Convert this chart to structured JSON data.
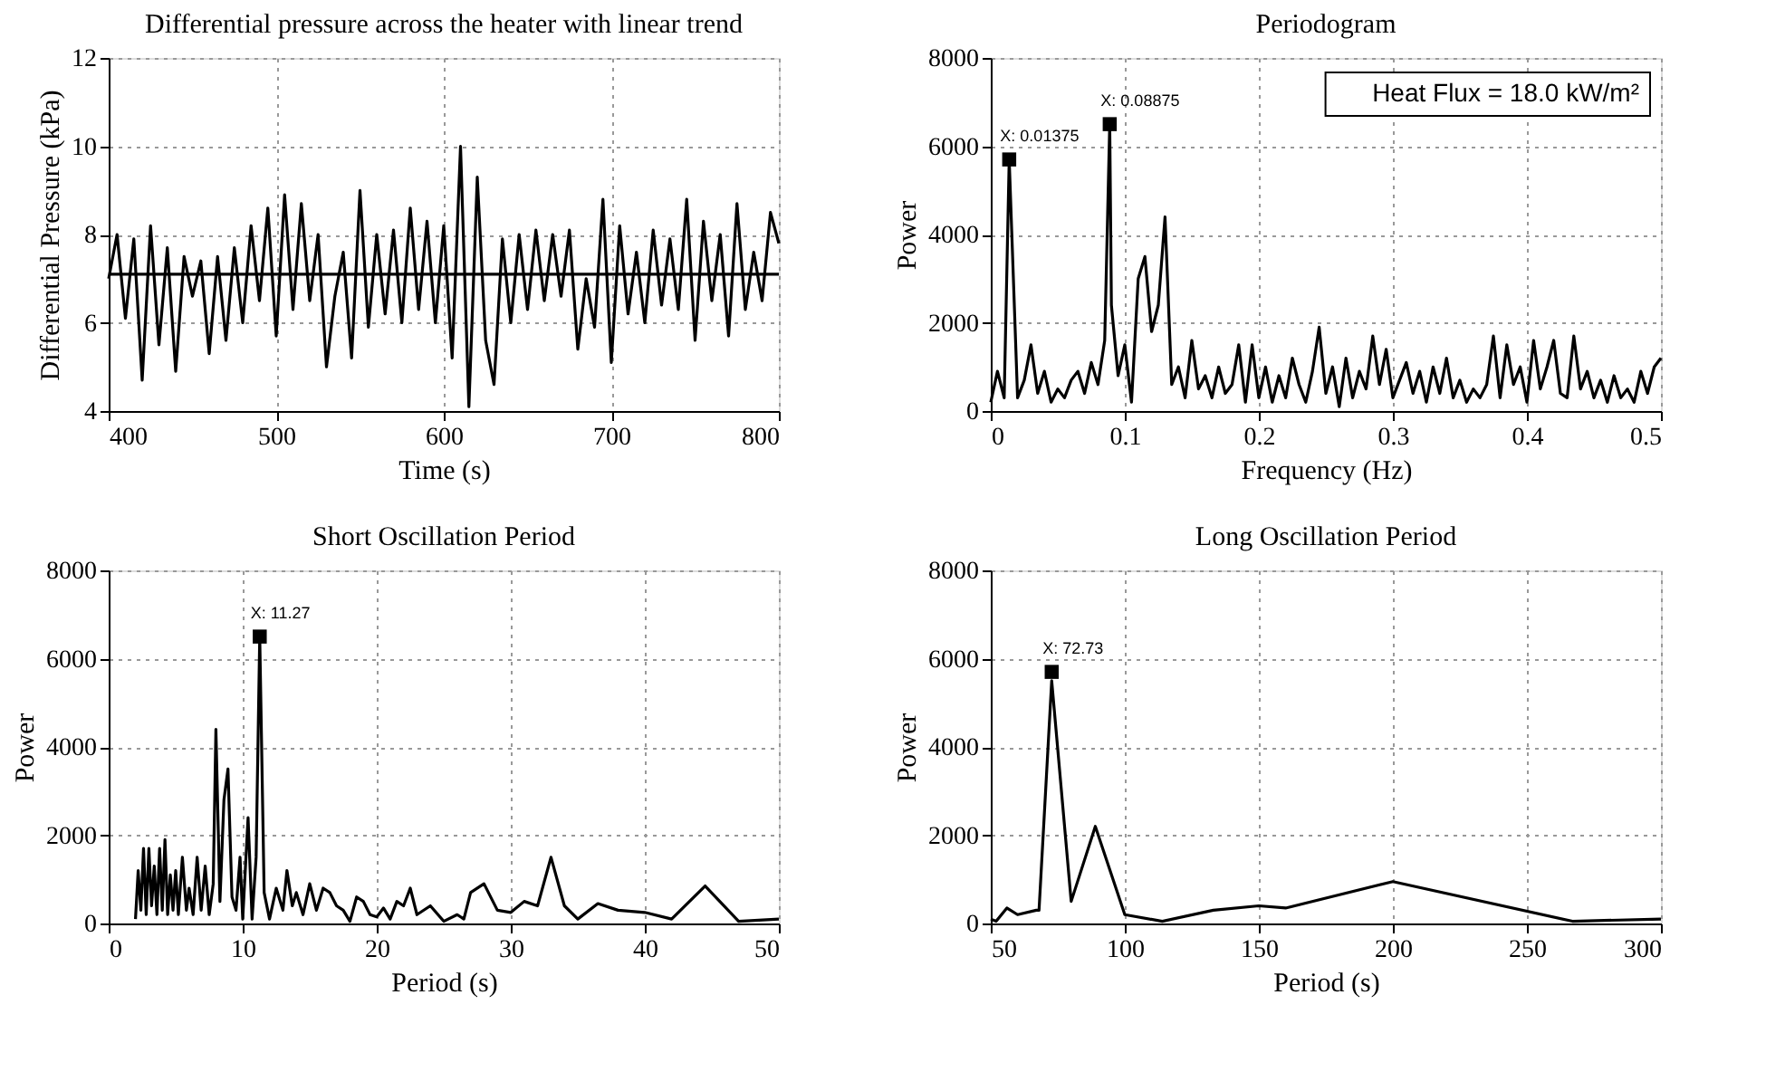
{
  "chart_data": [
    {
      "type": "line",
      "title": "Differential pressure across the heater with linear trend",
      "xlabel": "Time (s)",
      "ylabel": "Differential Pressure (kPa)",
      "xlim": [
        400,
        800
      ],
      "xticks": [
        400,
        500,
        600,
        700,
        800
      ],
      "ylim": [
        4,
        12
      ],
      "yticks": [
        4,
        6,
        8,
        10,
        12
      ],
      "grid": true,
      "series": [
        {
          "color": "#000000",
          "x": [
            400,
            405,
            410,
            415,
            420,
            425,
            430,
            435,
            440,
            445,
            450,
            455,
            460,
            465,
            470,
            475,
            480,
            485,
            490,
            495,
            500,
            505,
            510,
            515,
            520,
            525,
            530,
            535,
            540,
            545,
            550,
            555,
            560,
            565,
            570,
            575,
            580,
            585,
            590,
            595,
            600,
            605,
            610,
            615,
            620,
            625,
            630,
            635,
            640,
            645,
            650,
            655,
            660,
            665,
            670,
            675,
            680,
            685,
            690,
            695,
            700,
            705,
            710,
            715,
            720,
            725,
            730,
            735,
            740,
            745,
            750,
            755,
            760,
            765,
            770,
            775,
            780,
            785,
            790,
            795,
            800
          ],
          "values": [
            7.0,
            8.0,
            6.1,
            7.9,
            4.7,
            8.2,
            5.5,
            7.7,
            4.9,
            7.5,
            6.6,
            7.4,
            5.3,
            7.5,
            5.6,
            7.7,
            6.0,
            8.2,
            6.5,
            8.6,
            5.7,
            8.9,
            6.3,
            8.7,
            6.5,
            8.0,
            5.0,
            6.6,
            7.6,
            5.2,
            9.0,
            5.9,
            8.0,
            6.2,
            8.1,
            6.0,
            8.6,
            6.3,
            8.3,
            6.0,
            8.2,
            5.2,
            10.0,
            4.1,
            9.3,
            5.6,
            4.6,
            7.9,
            6.0,
            8.0,
            6.3,
            8.1,
            6.5,
            8.0,
            6.6,
            8.1,
            5.4,
            7.0,
            5.9,
            8.8,
            5.1,
            8.2,
            6.2,
            7.6,
            6.0,
            8.1,
            6.4,
            7.9,
            6.3,
            8.8,
            5.6,
            8.3,
            6.5,
            8.0,
            5.7,
            8.7,
            6.3,
            7.6,
            6.5,
            8.5,
            7.8
          ]
        },
        {
          "color": "#000000",
          "x": [
            400,
            800
          ],
          "values": [
            7.1,
            7.1
          ]
        }
      ]
    },
    {
      "type": "line",
      "title": "Periodogram",
      "xlabel": "Frequency (Hz)",
      "ylabel": "Power",
      "xlim": [
        0,
        0.5
      ],
      "xticks": [
        0,
        0.1,
        0.2,
        0.3,
        0.4,
        0.5
      ],
      "ylim": [
        0,
        8000
      ],
      "yticks": [
        0,
        2000,
        4000,
        6000,
        8000
      ],
      "grid": true,
      "annotations": [
        {
          "text": "X: 0.01375",
          "x": 0.01375,
          "y": 5700
        },
        {
          "text": "X: 0.08875",
          "x": 0.08875,
          "y": 6500
        },
        "Heat Flux = 18.0 kW/m²"
      ],
      "series": [
        {
          "color": "#000000",
          "x": [
            0,
            0.005,
            0.01,
            0.01375,
            0.02,
            0.025,
            0.03,
            0.035,
            0.04,
            0.045,
            0.05,
            0.055,
            0.06,
            0.065,
            0.07,
            0.075,
            0.08,
            0.085,
            0.08875,
            0.09,
            0.095,
            0.1,
            0.105,
            0.11,
            0.115,
            0.12,
            0.125,
            0.13,
            0.135,
            0.14,
            0.145,
            0.15,
            0.155,
            0.16,
            0.165,
            0.17,
            0.175,
            0.18,
            0.185,
            0.19,
            0.195,
            0.2,
            0.205,
            0.21,
            0.215,
            0.22,
            0.225,
            0.23,
            0.235,
            0.24,
            0.245,
            0.25,
            0.255,
            0.26,
            0.265,
            0.27,
            0.275,
            0.28,
            0.285,
            0.29,
            0.295,
            0.3,
            0.305,
            0.31,
            0.315,
            0.32,
            0.325,
            0.33,
            0.335,
            0.34,
            0.345,
            0.35,
            0.355,
            0.36,
            0.365,
            0.37,
            0.375,
            0.38,
            0.385,
            0.39,
            0.395,
            0.4,
            0.405,
            0.41,
            0.415,
            0.42,
            0.425,
            0.43,
            0.435,
            0.44,
            0.445,
            0.45,
            0.455,
            0.46,
            0.465,
            0.47,
            0.475,
            0.48,
            0.485,
            0.49,
            0.495,
            0.5
          ],
          "values": [
            200,
            900,
            300,
            5700,
            300,
            700,
            1500,
            400,
            900,
            200,
            500,
            300,
            700,
            900,
            400,
            1100,
            600,
            1600,
            6500,
            2400,
            800,
            1500,
            200,
            3000,
            3500,
            1800,
            2400,
            4400,
            600,
            1000,
            300,
            1600,
            500,
            800,
            300,
            1000,
            400,
            600,
            1500,
            200,
            1500,
            300,
            1000,
            200,
            800,
            300,
            1200,
            600,
            200,
            900,
            1900,
            400,
            1000,
            100,
            1200,
            300,
            900,
            500,
            1700,
            600,
            1400,
            300,
            700,
            1100,
            400,
            900,
            200,
            1000,
            400,
            1200,
            300,
            700,
            200,
            500,
            300,
            600,
            1700,
            300,
            1500,
            600,
            1000,
            200,
            1600,
            500,
            1000,
            1600,
            400,
            300,
            1700,
            500,
            900,
            300,
            700,
            200,
            800,
            300,
            500,
            200,
            900,
            400,
            1000,
            1200
          ]
        }
      ]
    },
    {
      "type": "line",
      "title": "Short Oscillation Period",
      "xlabel": "Period (s)",
      "ylabel": "Power",
      "xlim": [
        0,
        50
      ],
      "xticks": [
        0,
        10,
        20,
        30,
        40,
        50
      ],
      "ylim": [
        0,
        8000
      ],
      "yticks": [
        0,
        2000,
        4000,
        6000,
        8000
      ],
      "grid": true,
      "annotations": [
        {
          "text": "X: 11.27",
          "x": 11.27,
          "y": 6500
        }
      ],
      "series": [
        {
          "color": "#000000",
          "x": [
            2,
            2.2,
            2.4,
            2.6,
            2.8,
            3,
            3.2,
            3.4,
            3.6,
            3.8,
            4,
            4.2,
            4.4,
            4.6,
            4.8,
            5,
            5.2,
            5.5,
            5.8,
            6,
            6.3,
            6.6,
            6.9,
            7.2,
            7.5,
            7.8,
            8,
            8.3,
            8.6,
            8.9,
            9.2,
            9.5,
            9.8,
            10,
            10.4,
            10.7,
            11,
            11.27,
            11.6,
            12,
            12.5,
            13,
            13.3,
            13.7,
            14,
            14.5,
            15,
            15.5,
            16,
            16.5,
            17,
            17.5,
            18,
            18.5,
            19,
            19.5,
            20,
            20.5,
            21,
            21.5,
            22,
            22.5,
            23,
            24,
            25,
            26,
            26.5,
            27,
            28,
            29,
            30,
            31,
            32,
            33,
            34,
            35,
            36.5,
            38,
            40,
            42,
            44.5,
            47,
            50
          ],
          "values": [
            100,
            1200,
            300,
            1700,
            200,
            1700,
            400,
            1300,
            200,
            1700,
            300,
            1900,
            200,
            1100,
            300,
            1200,
            200,
            1500,
            300,
            800,
            200,
            1500,
            300,
            1300,
            200,
            900,
            4400,
            500,
            2800,
            3500,
            600,
            300,
            1500,
            100,
            2400,
            100,
            1500,
            6500,
            700,
            100,
            800,
            300,
            1200,
            400,
            700,
            200,
            900,
            300,
            800,
            700,
            400,
            300,
            50,
            600,
            500,
            200,
            150,
            350,
            100,
            500,
            400,
            800,
            200,
            400,
            50,
            200,
            100,
            700,
            900,
            300,
            250,
            500,
            400,
            1500,
            400,
            100,
            450,
            300,
            250,
            100,
            850,
            50,
            100
          ]
        }
      ]
    },
    {
      "type": "line",
      "title": "Long Oscillation Period",
      "xlabel": "Period (s)",
      "ylabel": "Power",
      "xlim": [
        50,
        300
      ],
      "xticks": [
        50,
        100,
        150,
        200,
        250,
        300
      ],
      "ylim": [
        0,
        8000
      ],
      "yticks": [
        0,
        2000,
        4000,
        6000,
        8000
      ],
      "grid": true,
      "annotations": [
        {
          "text": "X: 72.73",
          "x": 72.73,
          "y": 5700
        }
      ],
      "series": [
        {
          "color": "#000000",
          "x": [
            50,
            52,
            56,
            60,
            67,
            68,
            72.73,
            80,
            89,
            100,
            114,
            133,
            150,
            160,
            200,
            267,
            300
          ],
          "values": [
            100,
            50,
            350,
            200,
            300,
            300,
            5500,
            500,
            2200,
            200,
            50,
            300,
            400,
            350,
            950,
            50,
            100
          ]
        }
      ]
    }
  ]
}
